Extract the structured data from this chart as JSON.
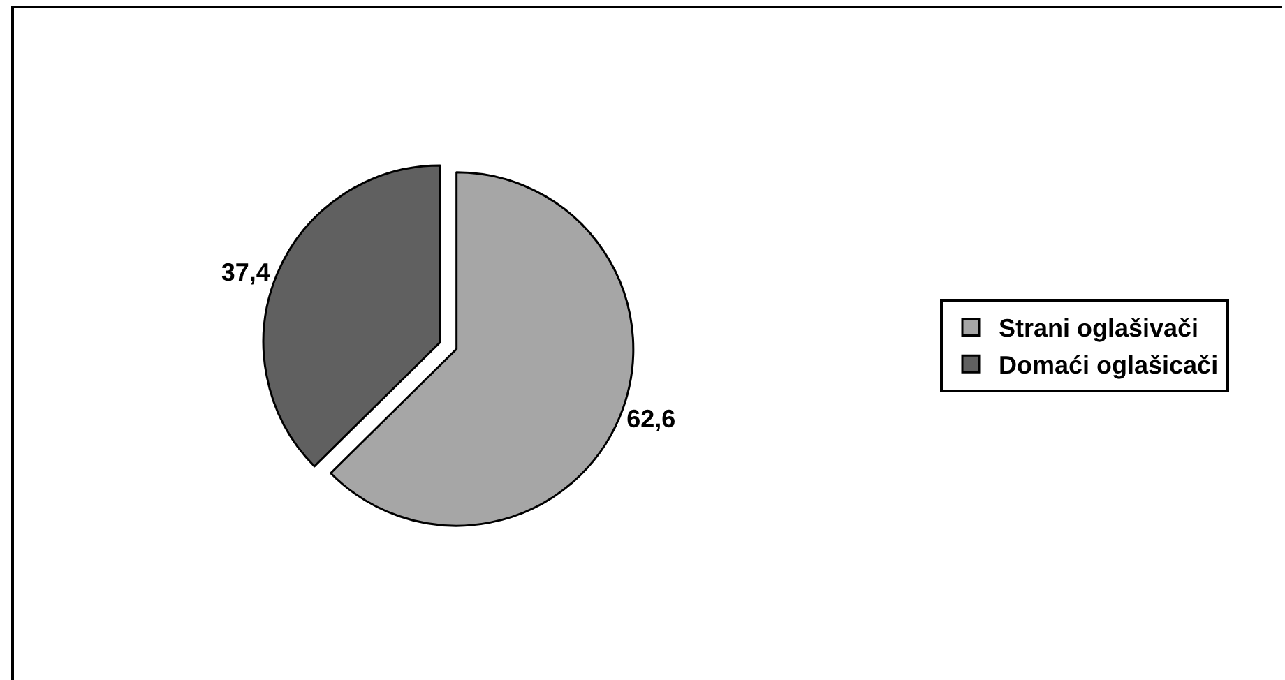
{
  "chart_data": {
    "type": "pie",
    "categories": [
      "Strani oglašivači",
      "Domaći oglašicači"
    ],
    "values": [
      62.6,
      37.4
    ],
    "colors": [
      "#a6a6a6",
      "#606060"
    ],
    "value_labels": [
      "62,6",
      "37,4"
    ],
    "legend": "right"
  }
}
